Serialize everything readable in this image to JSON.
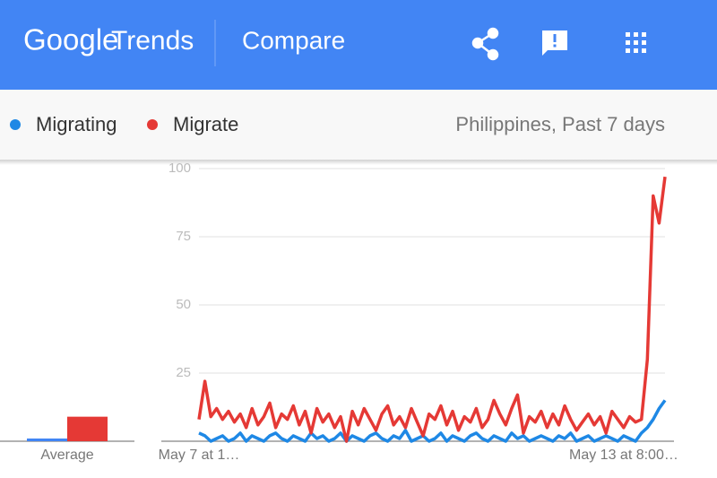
{
  "header": {
    "logo_google": "Google",
    "logo_trends": "Trends",
    "title": "Compare"
  },
  "location": "Philippines, Past 7 days",
  "chart_data": [
    {
      "type": "bar",
      "categories": [
        "Average"
      ],
      "ylim": [
        0,
        100
      ],
      "series": [
        {
          "color": "#4285f4",
          "values": [
            1
          ]
        },
        {
          "color": "#e53935",
          "values": [
            9
          ]
        }
      ]
    },
    {
      "type": "line",
      "ylim": [
        0,
        100
      ],
      "yticks": [
        25,
        50,
        75,
        100
      ],
      "grid": true,
      "categories": [
        "May 7 at 1…",
        null,
        null,
        null,
        null,
        null,
        null,
        null,
        null,
        null,
        null,
        null,
        null,
        null,
        null,
        null,
        null,
        null,
        null,
        null,
        null,
        null,
        null,
        null,
        null,
        null,
        null,
        null,
        null,
        null,
        null,
        null,
        null,
        null,
        null,
        null,
        null,
        null,
        null,
        null,
        null,
        null,
        null,
        null,
        null,
        null,
        null,
        null,
        null,
        null,
        null,
        null,
        null,
        null,
        null,
        null,
        null,
        null,
        null,
        null,
        null,
        null,
        null,
        null,
        null,
        null,
        null,
        null,
        null,
        null,
        null,
        null,
        "May 13 at 8:00…",
        null,
        null,
        null,
        null,
        null,
        null,
        null
      ],
      "series": [
        {
          "name": "Migrating",
          "color": "#1e88e5",
          "values": [
            3,
            2,
            0,
            1,
            2,
            0,
            1,
            3,
            0,
            2,
            1,
            0,
            2,
            3,
            1,
            0,
            2,
            1,
            0,
            3,
            1,
            2,
            0,
            1,
            3,
            0,
            2,
            1,
            0,
            2,
            3,
            1,
            0,
            2,
            1,
            4,
            0,
            1,
            2,
            0,
            1,
            3,
            0,
            2,
            1,
            0,
            2,
            3,
            1,
            0,
            2,
            1,
            0,
            3,
            1,
            2,
            0,
            1,
            2,
            1,
            0,
            2,
            1,
            3,
            0,
            1,
            2,
            0,
            1,
            2,
            1,
            0,
            2,
            1,
            0,
            3,
            5,
            8,
            12,
            15
          ]
        },
        {
          "name": "Migrate",
          "color": "#e53935",
          "values": [
            8,
            22,
            9,
            12,
            8,
            11,
            7,
            10,
            5,
            12,
            6,
            9,
            14,
            5,
            10,
            8,
            13,
            6,
            11,
            3,
            12,
            7,
            10,
            5,
            9,
            0,
            11,
            6,
            12,
            8,
            4,
            10,
            13,
            6,
            9,
            5,
            12,
            7,
            2,
            10,
            8,
            13,
            6,
            11,
            4,
            9,
            7,
            12,
            5,
            8,
            15,
            10,
            6,
            12,
            17,
            3,
            9,
            7,
            11,
            5,
            10,
            6,
            13,
            8,
            4,
            7,
            10,
            6,
            9,
            3,
            11,
            8,
            5,
            9,
            7,
            8,
            30,
            90,
            80,
            97
          ]
        }
      ]
    }
  ]
}
